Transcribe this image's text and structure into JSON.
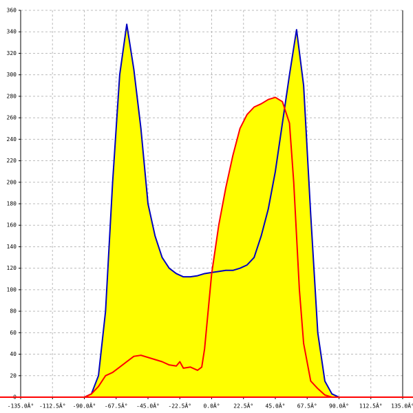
{
  "chart_data": {
    "type": "area",
    "xlim": [
      -135,
      135
    ],
    "ylim": [
      0,
      360
    ],
    "xticks": [
      {
        "value": -135,
        "label": "-135.0Â°"
      },
      {
        "value": -112.5,
        "label": "-112.5Â°"
      },
      {
        "value": -90,
        "label": "-90.0Â°"
      },
      {
        "value": -67.5,
        "label": "-67.5Â°"
      },
      {
        "value": -45,
        "label": "-45.0Â°"
      },
      {
        "value": -22.5,
        "label": "-22.5Â°"
      },
      {
        "value": 0,
        "label": "0.0Â°"
      },
      {
        "value": 22.5,
        "label": "22.5Â°"
      },
      {
        "value": 45,
        "label": "45.0Â°"
      },
      {
        "value": 67.5,
        "label": "67.5Â°"
      },
      {
        "value": 90,
        "label": "90.0Â°"
      },
      {
        "value": 112.5,
        "label": "112.5Â°"
      },
      {
        "value": 135,
        "label": "135.0Â°"
      }
    ],
    "yticks": [
      0,
      20,
      40,
      60,
      80,
      100,
      120,
      140,
      160,
      180,
      200,
      220,
      240,
      260,
      280,
      300,
      320,
      340,
      360
    ],
    "grid": true,
    "fill_color": "#ffff00",
    "axis_color": "#ff0000",
    "series": [
      {
        "color": "#0000c0",
        "x": [
          -95,
          -90,
          -85,
          -80,
          -75,
          -70,
          -65,
          -60,
          -55,
          -50,
          -45,
          -40,
          -35,
          -30,
          -25,
          -20,
          -15,
          -10,
          -5,
          0,
          5,
          10,
          15,
          20,
          25,
          30,
          35,
          40,
          45,
          50,
          55,
          60,
          65,
          70,
          75,
          80,
          85,
          90,
          95
        ],
        "values": [
          0,
          0,
          3,
          20,
          80,
          200,
          300,
          347,
          305,
          250,
          180,
          150,
          130,
          120,
          115,
          112,
          112,
          113,
          115,
          116,
          117,
          118,
          118,
          120,
          123,
          130,
          150,
          175,
          210,
          255,
          300,
          342,
          290,
          170,
          60,
          15,
          3,
          0,
          0
        ]
      },
      {
        "color": "#ff0000",
        "x": [
          -95,
          -90,
          -85,
          -80,
          -75,
          -70,
          -65,
          -60,
          -55,
          -50,
          -45,
          -40,
          -35,
          -30,
          -25,
          -22.5,
          -20,
          -15,
          -10,
          -7,
          -5,
          0,
          5,
          10,
          15,
          20,
          25,
          30,
          35,
          40,
          45,
          50,
          55,
          58,
          60,
          62,
          65,
          70,
          75,
          80,
          85,
          90,
          95
        ],
        "values": [
          0,
          0,
          3,
          10,
          20,
          23,
          28,
          33,
          38,
          39,
          37,
          35,
          33,
          30,
          29,
          33,
          27,
          28,
          25,
          28,
          45,
          115,
          160,
          195,
          225,
          250,
          263,
          270,
          273,
          277,
          279,
          275,
          255,
          200,
          150,
          100,
          50,
          15,
          8,
          2,
          0,
          0,
          0
        ]
      }
    ]
  }
}
